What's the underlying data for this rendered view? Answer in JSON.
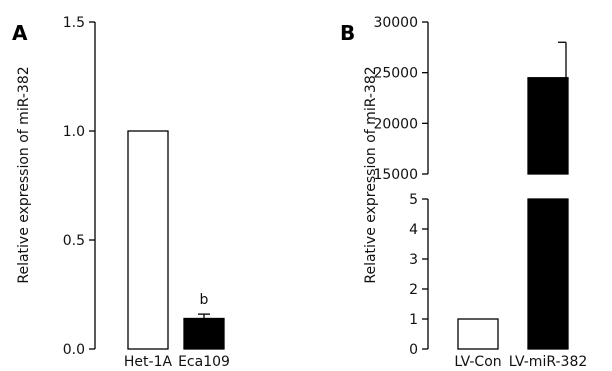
{
  "chart_data": [
    {
      "panel": "A",
      "type": "bar",
      "ylabel": "Relative expression of miR-382",
      "categories": [
        "Het-1A",
        "Eca109"
      ],
      "values": [
        1.0,
        0.14
      ],
      "error_upper": [
        1.0,
        0.16
      ],
      "annotations": [
        "",
        "b"
      ],
      "fills": [
        "#ffffff",
        "#000000"
      ],
      "ylim": [
        0,
        1.5
      ],
      "yticks": [
        "0.0",
        "0.5",
        "1.0",
        "1.5"
      ],
      "ytick_values": [
        0,
        0.5,
        1.0,
        1.5
      ]
    },
    {
      "panel": "B",
      "type": "bar",
      "ylabel": "Relative expression of miR-382",
      "categories": [
        "LV-Con",
        "LV-miR-382"
      ],
      "values": [
        1.0,
        24500
      ],
      "error_upper": [
        1.0,
        28000
      ],
      "fills": [
        "#ffffff",
        "#000000"
      ],
      "broken_axis": true,
      "lower_range": [
        0,
        5
      ],
      "upper_range": [
        15000,
        30000
      ],
      "yticks_lower": [
        "0",
        "1",
        "2",
        "3",
        "4",
        "5"
      ],
      "ytick_values_lower": [
        0,
        1,
        2,
        3,
        4,
        5
      ],
      "yticks_upper": [
        "15000",
        "20000",
        "25000",
        "30000"
      ],
      "ytick_values_upper": [
        15000,
        20000,
        25000,
        30000
      ]
    }
  ]
}
